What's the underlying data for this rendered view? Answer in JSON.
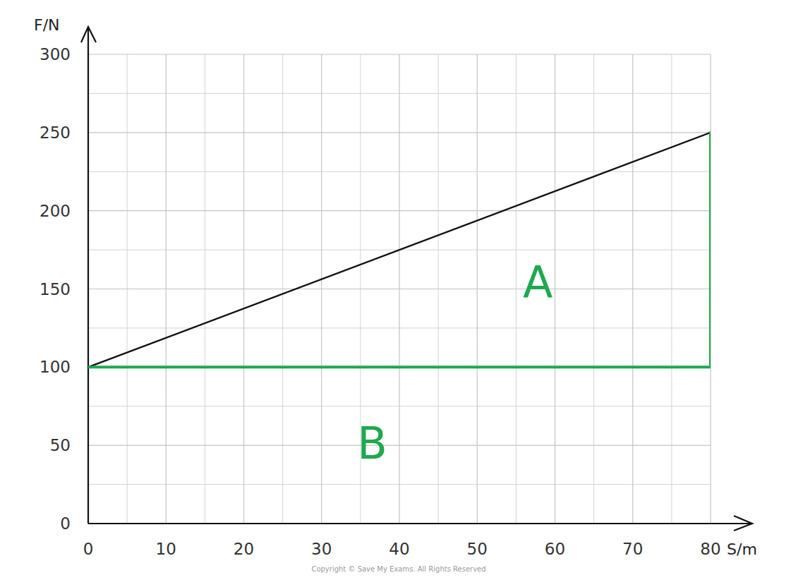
{
  "chart_data": {
    "type": "line",
    "x_label": "S/m",
    "y_label": "F/N",
    "xlim": [
      0,
      80
    ],
    "ylim": [
      0,
      300
    ],
    "xticks": [
      0,
      10,
      20,
      30,
      40,
      50,
      60,
      70,
      80
    ],
    "yticks": [
      0,
      50,
      100,
      150,
      200,
      250,
      300
    ],
    "grid": true,
    "series": [
      {
        "x": [
          0,
          80
        ],
        "values": [
          100,
          250
        ],
        "color": "#111111",
        "line_style": "solid"
      },
      {
        "x": [
          0,
          80,
          80
        ],
        "values": [
          100,
          100,
          250
        ],
        "color": "#1fa84f",
        "line_style": "solid"
      }
    ],
    "annotations": [
      {
        "text": "A",
        "x": 57.8,
        "y": 154,
        "color": "#1fa84f"
      },
      {
        "text": "B",
        "x": 36.5,
        "y": 51,
        "color": "#1fa84f"
      }
    ],
    "footnote": "Copyright © Save My Exams. All Rights Reserved"
  }
}
